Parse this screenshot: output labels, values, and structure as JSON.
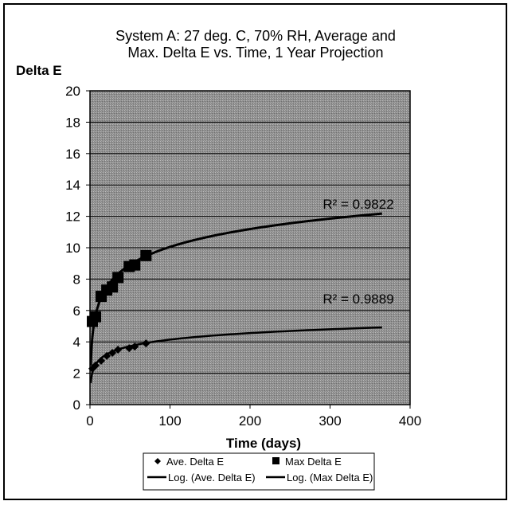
{
  "chart_data": {
    "type": "scatter",
    "title_lines": [
      "System A: 27 deg. C, 70% RH, Average and",
      "Max. Delta E vs. Time, 1 Year Projection"
    ],
    "xlabel": "Time (days)",
    "ylabel": "Delta E",
    "xlim": [
      0,
      400
    ],
    "ylim": [
      0,
      20
    ],
    "xticks": [
      0,
      100,
      200,
      300,
      400
    ],
    "yticks": [
      0,
      2,
      4,
      6,
      8,
      10,
      12,
      14,
      16,
      18,
      20
    ],
    "grid": "horizontal",
    "plot_background": "#9a9a9a",
    "series": [
      {
        "name": "Ave. Delta E",
        "marker": "diamond",
        "x": [
          3,
          7,
          14,
          21,
          28,
          35,
          49,
          56,
          70
        ],
        "y": [
          2.3,
          2.5,
          2.8,
          3.1,
          3.3,
          3.5,
          3.6,
          3.7,
          3.9
        ]
      },
      {
        "name": "Max Delta E",
        "marker": "square",
        "x": [
          3,
          7,
          14,
          21,
          28,
          35,
          49,
          56,
          70
        ],
        "y": [
          5.3,
          5.6,
          6.9,
          7.3,
          7.5,
          8.1,
          8.8,
          8.9,
          9.5
        ]
      }
    ],
    "trendlines": [
      {
        "name": "Log. (Ave. Delta E)",
        "type": "logarithmic",
        "a": 0.6,
        "b": 1.38,
        "x_range": [
          1,
          365
        ],
        "r_squared_label": "R² = 0.9889"
      },
      {
        "name": "Log. (Max Delta E)",
        "type": "logarithmic",
        "a": 1.64,
        "b": 2.5,
        "x_range": [
          1,
          365
        ],
        "r_squared_label": "R² = 0.9822"
      }
    ],
    "legend": {
      "placement": "bottom",
      "entries": [
        "Ave. Delta E",
        "Max Delta E",
        "Log. (Ave. Delta E)",
        "Log. (Max Delta E)"
      ]
    }
  }
}
